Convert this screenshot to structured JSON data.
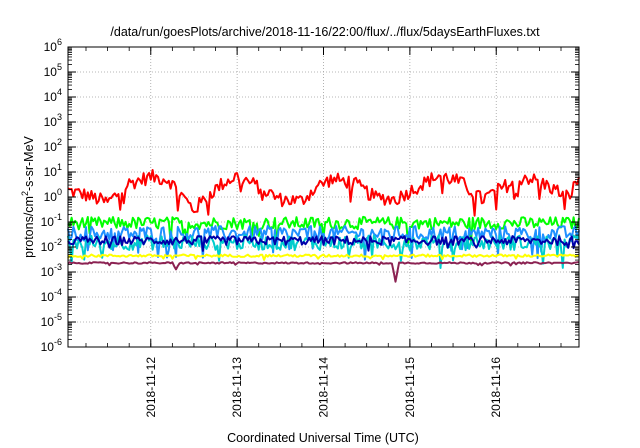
{
  "chart_data": {
    "type": "line",
    "title": "/data/run/goesPlots/archive/2018-11-16/22:00/flux/../flux/5daysEarthFluxes.txt",
    "xlabel": "Coordinated Universal Time (UTC)",
    "ylabel": {
      "base": "protons/cm",
      "sup": "2",
      "rest": "-s-sr-MeV"
    },
    "yscale": "log",
    "ylim": [
      1e-06,
      1000000.0
    ],
    "xlim": [
      "2018-11-11T01:00",
      "2018-11-16T23:00"
    ],
    "x_ticks": [
      "2018-11-12",
      "2018-11-13",
      "2018-11-14",
      "2018-11-15",
      "2018-11-16"
    ],
    "y_ticks": [
      "-6",
      "-5",
      "-4",
      "-3",
      "-2",
      "-1",
      "0",
      "1",
      "2",
      "3",
      "4",
      "5",
      "6"
    ],
    "y_tick_base": "10",
    "grid": true,
    "legend": "none",
    "series": [
      {
        "color": "#ff0000",
        "noise": 0.28,
        "x": [
          "2018-11-11T01:00",
          "2018-11-11T06:00",
          "2018-11-11T12:00",
          "2018-11-11T18:00",
          "2018-11-12T00:00",
          "2018-11-12T05:00",
          "2018-11-12T09:00",
          "2018-11-12T12:00",
          "2018-11-12T16:00",
          "2018-11-12T20:00",
          "2018-11-13T00:00",
          "2018-11-13T06:00",
          "2018-11-13T12:00",
          "2018-11-13T18:00",
          "2018-11-13T22:00",
          "2018-11-14T02:00",
          "2018-11-14T08:00",
          "2018-11-14T14:00",
          "2018-11-14T20:00",
          "2018-11-15T02:00",
          "2018-11-15T08:00",
          "2018-11-15T14:00",
          "2018-11-15T20:00",
          "2018-11-16T02:00",
          "2018-11-16T08:00",
          "2018-11-16T14:00",
          "2018-11-16T20:00",
          "2018-11-16T23:00"
        ],
        "y": [
          1.8,
          1.2,
          0.6,
          3.5,
          6.5,
          5.0,
          1.0,
          0.3,
          1.2,
          3.5,
          7.0,
          2.5,
          0.8,
          0.7,
          2.5,
          5.0,
          4.0,
          1.0,
          0.8,
          2.5,
          7.5,
          4.0,
          0.8,
          2.5,
          6.5,
          3.0,
          1.0,
          5.5
        ]
      },
      {
        "color": "#00ff00",
        "noise": 0.25,
        "x": [
          "2018-11-11T01:00",
          "2018-11-13T00:00",
          "2018-11-15T00:00",
          "2018-11-16T23:00"
        ],
        "y": [
          0.09,
          0.09,
          0.09,
          0.09
        ]
      },
      {
        "color": "#1e90ff",
        "noise": 0.3,
        "x": [
          "2018-11-11T01:00",
          "2018-11-13T00:00",
          "2018-11-15T00:00",
          "2018-11-16T23:00"
        ],
        "y": [
          0.035,
          0.035,
          0.035,
          0.035
        ]
      },
      {
        "color": "#00cdcd",
        "noise": 0.3,
        "x": [
          "2018-11-11T01:00",
          "2018-11-13T00:00",
          "2018-11-15T00:00",
          "2018-11-16T23:00"
        ],
        "y": [
          0.015,
          0.015,
          0.015,
          0.015
        ]
      },
      {
        "color": "#0000aa",
        "noise": 0.18,
        "x": [
          "2018-11-11T01:00",
          "2018-11-13T00:00",
          "2018-11-15T00:00",
          "2018-11-16T23:00"
        ],
        "y": [
          0.018,
          0.018,
          0.018,
          0.018
        ]
      },
      {
        "color": "#ffff00",
        "noise": 0.05,
        "x": [
          "2018-11-11T01:00",
          "2018-11-13T00:00",
          "2018-11-15T00:00",
          "2018-11-16T23:00"
        ],
        "y": [
          0.0045,
          0.0045,
          0.0045,
          0.0045
        ]
      },
      {
        "color": "#8b2252",
        "noise": 0.03,
        "x": [
          "2018-11-11T01:00",
          "2018-11-12T06:00",
          "2018-11-12T07:00",
          "2018-11-12T08:00",
          "2018-11-14T19:00",
          "2018-11-14T20:00",
          "2018-11-14T21:00",
          "2018-11-16T23:00"
        ],
        "y": [
          0.0023,
          0.0023,
          0.0012,
          0.0023,
          0.0023,
          0.0004,
          0.0023,
          0.0023
        ]
      }
    ]
  }
}
